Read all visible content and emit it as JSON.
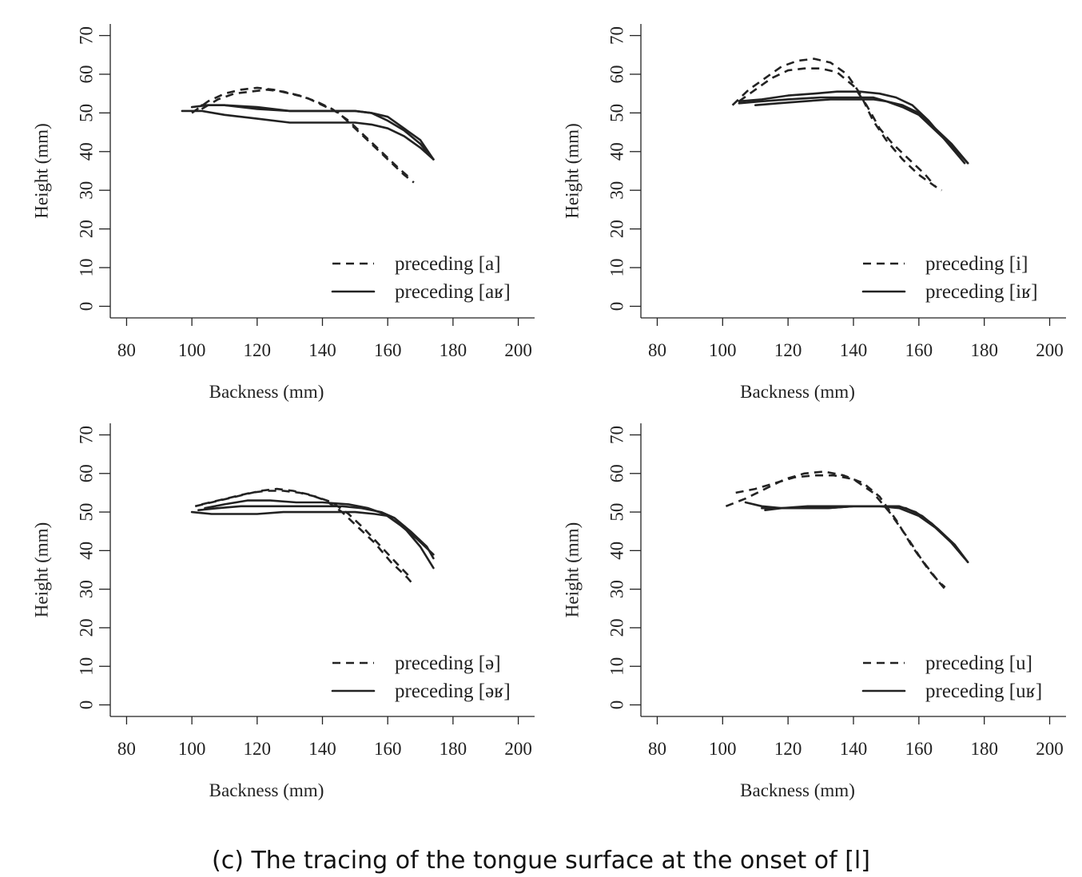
{
  "caption": "(c) The tracing of the tongue surface at the onset of [l]",
  "chart_data": [
    {
      "type": "line",
      "xlabel": "Backness (mm)",
      "ylabel": "Height (mm)",
      "xlim": [
        75,
        205
      ],
      "ylim": [
        -3,
        73
      ],
      "xticks": [
        80,
        100,
        120,
        140,
        160,
        180,
        200
      ],
      "yticks": [
        0,
        10,
        20,
        30,
        40,
        50,
        60,
        70
      ],
      "legend": "bottom-right",
      "series": [
        {
          "name": "preceding [a]",
          "style": "dashed",
          "curves": [
            {
              "x": [
                100,
                105,
                110,
                115,
                120,
                125,
                130,
                135,
                140,
                145,
                150,
                155,
                160,
                165,
                168
              ],
              "y": [
                50,
                53,
                55,
                56,
                56.5,
                56,
                55,
                54,
                52,
                50,
                46,
                42,
                38,
                34,
                32
              ]
            },
            {
              "x": [
                103,
                108,
                113,
                118,
                123,
                128,
                133,
                138,
                143,
                148,
                153,
                158,
                163,
                167
              ],
              "y": [
                51,
                53.5,
                55,
                55.5,
                56,
                55.5,
                54.5,
                53,
                51,
                48,
                44,
                40,
                36,
                33
              ]
            }
          ]
        },
        {
          "name": "preceding [aʁ]",
          "style": "solid",
          "curves": [
            {
              "x": [
                97,
                103,
                110,
                120,
                130,
                140,
                150,
                155,
                160,
                165,
                170,
                174
              ],
              "y": [
                50.5,
                50.5,
                49.5,
                48.5,
                47.5,
                47.5,
                47.5,
                47,
                46,
                44,
                41,
                38
              ]
            },
            {
              "x": [
                100,
                105,
                110,
                120,
                130,
                140,
                150,
                155,
                160,
                165,
                170,
                174
              ],
              "y": [
                51.5,
                52,
                52,
                51,
                50.5,
                50.5,
                50.5,
                50,
                48,
                45.5,
                42,
                38
              ]
            },
            {
              "x": [
                103,
                110,
                120,
                130,
                140,
                150,
                155,
                160,
                165,
                170,
                174
              ],
              "y": [
                52,
                52,
                51.5,
                50.5,
                50.5,
                50.5,
                50,
                49,
                46,
                43,
                38
              ]
            }
          ]
        }
      ]
    },
    {
      "type": "line",
      "xlabel": "Backness (mm)",
      "ylabel": "Height (mm)",
      "xlim": [
        75,
        205
      ],
      "ylim": [
        -3,
        73
      ],
      "xticks": [
        80,
        100,
        120,
        140,
        160,
        180,
        200
      ],
      "yticks": [
        0,
        10,
        20,
        30,
        40,
        50,
        60,
        70
      ],
      "legend": "bottom-right",
      "series": [
        {
          "name": "preceding [i]",
          "style": "dashed",
          "curves": [
            {
              "x": [
                103,
                108,
                113,
                118,
                123,
                128,
                133,
                138,
                142,
                146,
                150,
                155,
                160,
                165,
                167
              ],
              "y": [
                52,
                56,
                59,
                62,
                63.5,
                64,
                63,
                60,
                55,
                48,
                43,
                38,
                34,
                31,
                30
              ]
            },
            {
              "x": [
                105,
                110,
                115,
                120,
                125,
                130,
                135,
                140,
                144,
                148,
                152,
                157,
                162,
                165
              ],
              "y": [
                53,
                56,
                59,
                61,
                61.5,
                61.5,
                60.5,
                57,
                52,
                46,
                42,
                38,
                34,
                31
              ]
            }
          ]
        },
        {
          "name": "preceding [iʁ]",
          "style": "solid",
          "curves": [
            {
              "x": [
                105,
                112,
                120,
                130,
                140,
                146,
                150,
                155,
                160,
                165,
                170,
                175
              ],
              "y": [
                52.5,
                53,
                53.5,
                54,
                54,
                54,
                53,
                52,
                50,
                46,
                42,
                37
              ]
            },
            {
              "x": [
                110,
                117,
                125,
                133,
                140,
                146,
                150,
                155,
                160,
                165,
                170,
                175
              ],
              "y": [
                52,
                52.5,
                53,
                53.5,
                53.5,
                53.5,
                53,
                51.5,
                49.5,
                45.5,
                41.5,
                37
              ]
            },
            {
              "x": [
                105,
                112,
                120,
                128,
                135,
                142,
                148,
                153,
                158,
                163,
                168,
                174
              ],
              "y": [
                53,
                53.5,
                54.5,
                55,
                55.5,
                55.5,
                55,
                54,
                52,
                48,
                43,
                37
              ]
            }
          ]
        }
      ]
    },
    {
      "type": "line",
      "xlabel": "Backness (mm)",
      "ylabel": "Height (mm)",
      "xlim": [
        75,
        205
      ],
      "ylim": [
        -3,
        73
      ],
      "xticks": [
        80,
        100,
        120,
        140,
        160,
        180,
        200
      ],
      "yticks": [
        0,
        10,
        20,
        30,
        40,
        50,
        60,
        70
      ],
      "legend": "bottom-right",
      "series": [
        {
          "name": "preceding [ə]",
          "style": "dashed",
          "curves": [
            {
              "x": [
                101,
                106,
                111,
                116,
                121,
                126,
                131,
                136,
                141,
                146,
                151,
                156,
                161,
                166,
                168
              ],
              "y": [
                51.5,
                52.5,
                53.5,
                54.5,
                55.5,
                56,
                55.5,
                54.5,
                53,
                50,
                46,
                42,
                37,
                33,
                31
              ]
            },
            {
              "x": [
                103,
                108,
                113,
                118,
                123,
                128,
                133,
                138,
                143,
                148,
                153,
                158,
                163,
                167
              ],
              "y": [
                52,
                53,
                54,
                55,
                55.5,
                55.5,
                55,
                54,
                52.5,
                49.5,
                45.5,
                41,
                36.5,
                33
              ]
            }
          ]
        },
        {
          "name": "preceding [əʁ]",
          "style": "solid",
          "curves": [
            {
              "x": [
                100,
                106,
                112,
                120,
                128,
                136,
                144,
                150,
                156,
                160,
                165,
                170,
                174
              ],
              "y": [
                50,
                49.5,
                49.5,
                49.5,
                50,
                50,
                50,
                50,
                49.5,
                49,
                46,
                41,
                35.5
              ]
            },
            {
              "x": [
                102,
                108,
                115,
                122,
                130,
                138,
                146,
                152,
                158,
                162,
                167,
                172,
                174
              ],
              "y": [
                50.5,
                51,
                51.5,
                51.5,
                51.5,
                51.5,
                51.5,
                51,
                50,
                48.5,
                45,
                41,
                38
              ]
            },
            {
              "x": [
                104,
                110,
                117,
                124,
                132,
                140,
                148,
                154,
                159,
                164,
                169,
                174
              ],
              "y": [
                51,
                52,
                53,
                53,
                52.5,
                52.5,
                52,
                51,
                49.5,
                46.5,
                43,
                39
              ]
            }
          ]
        }
      ]
    },
    {
      "type": "line",
      "xlabel": "Backness (mm)",
      "ylabel": "Height (mm)",
      "xlim": [
        75,
        205
      ],
      "ylim": [
        -3,
        73
      ],
      "xticks": [
        80,
        100,
        120,
        140,
        160,
        180,
        200
      ],
      "yticks": [
        0,
        10,
        20,
        30,
        40,
        50,
        60,
        70
      ],
      "legend": "bottom-right",
      "series": [
        {
          "name": "preceding [u]",
          "style": "dashed",
          "curves": [
            {
              "x": [
                101,
                107,
                113,
                119,
                125,
                131,
                137,
                143,
                148,
                153,
                158,
                163,
                168
              ],
              "y": [
                51.5,
                53.5,
                56,
                58.5,
                60,
                60.5,
                59.5,
                57.5,
                54,
                48,
                41,
                35,
                30
              ]
            },
            {
              "x": [
                104,
                110,
                116,
                122,
                128,
                134,
                140,
                146,
                151,
                156,
                161,
                166,
                168
              ],
              "y": [
                55,
                56,
                57.5,
                59,
                59.5,
                59.5,
                58.5,
                55,
                50,
                44,
                37.5,
                32,
                30.5
              ]
            }
          ]
        },
        {
          "name": "preceding [uʁ]",
          "style": "solid",
          "curves": [
            {
              "x": [
                107,
                112,
                118,
                125,
                132,
                140,
                148,
                154,
                160,
                165,
                170,
                175
              ],
              "y": [
                52.5,
                51.5,
                51,
                51,
                51,
                51.5,
                51.5,
                51,
                49,
                46,
                42,
                37
              ]
            },
            {
              "x": [
                113,
                118,
                125,
                132,
                140,
                148,
                154,
                159,
                164,
                169,
                174
              ],
              "y": [
                50.5,
                51,
                51,
                51,
                51.5,
                51.5,
                51.5,
                50,
                47,
                43,
                38
              ]
            },
            {
              "x": [
                112,
                118,
                126,
                134,
                142,
                150,
                156,
                161,
                166,
                171,
                175
              ],
              "y": [
                51,
                51,
                51.5,
                51.5,
                51.5,
                51.5,
                51,
                49,
                45.5,
                41.5,
                37
              ]
            }
          ]
        }
      ]
    }
  ]
}
